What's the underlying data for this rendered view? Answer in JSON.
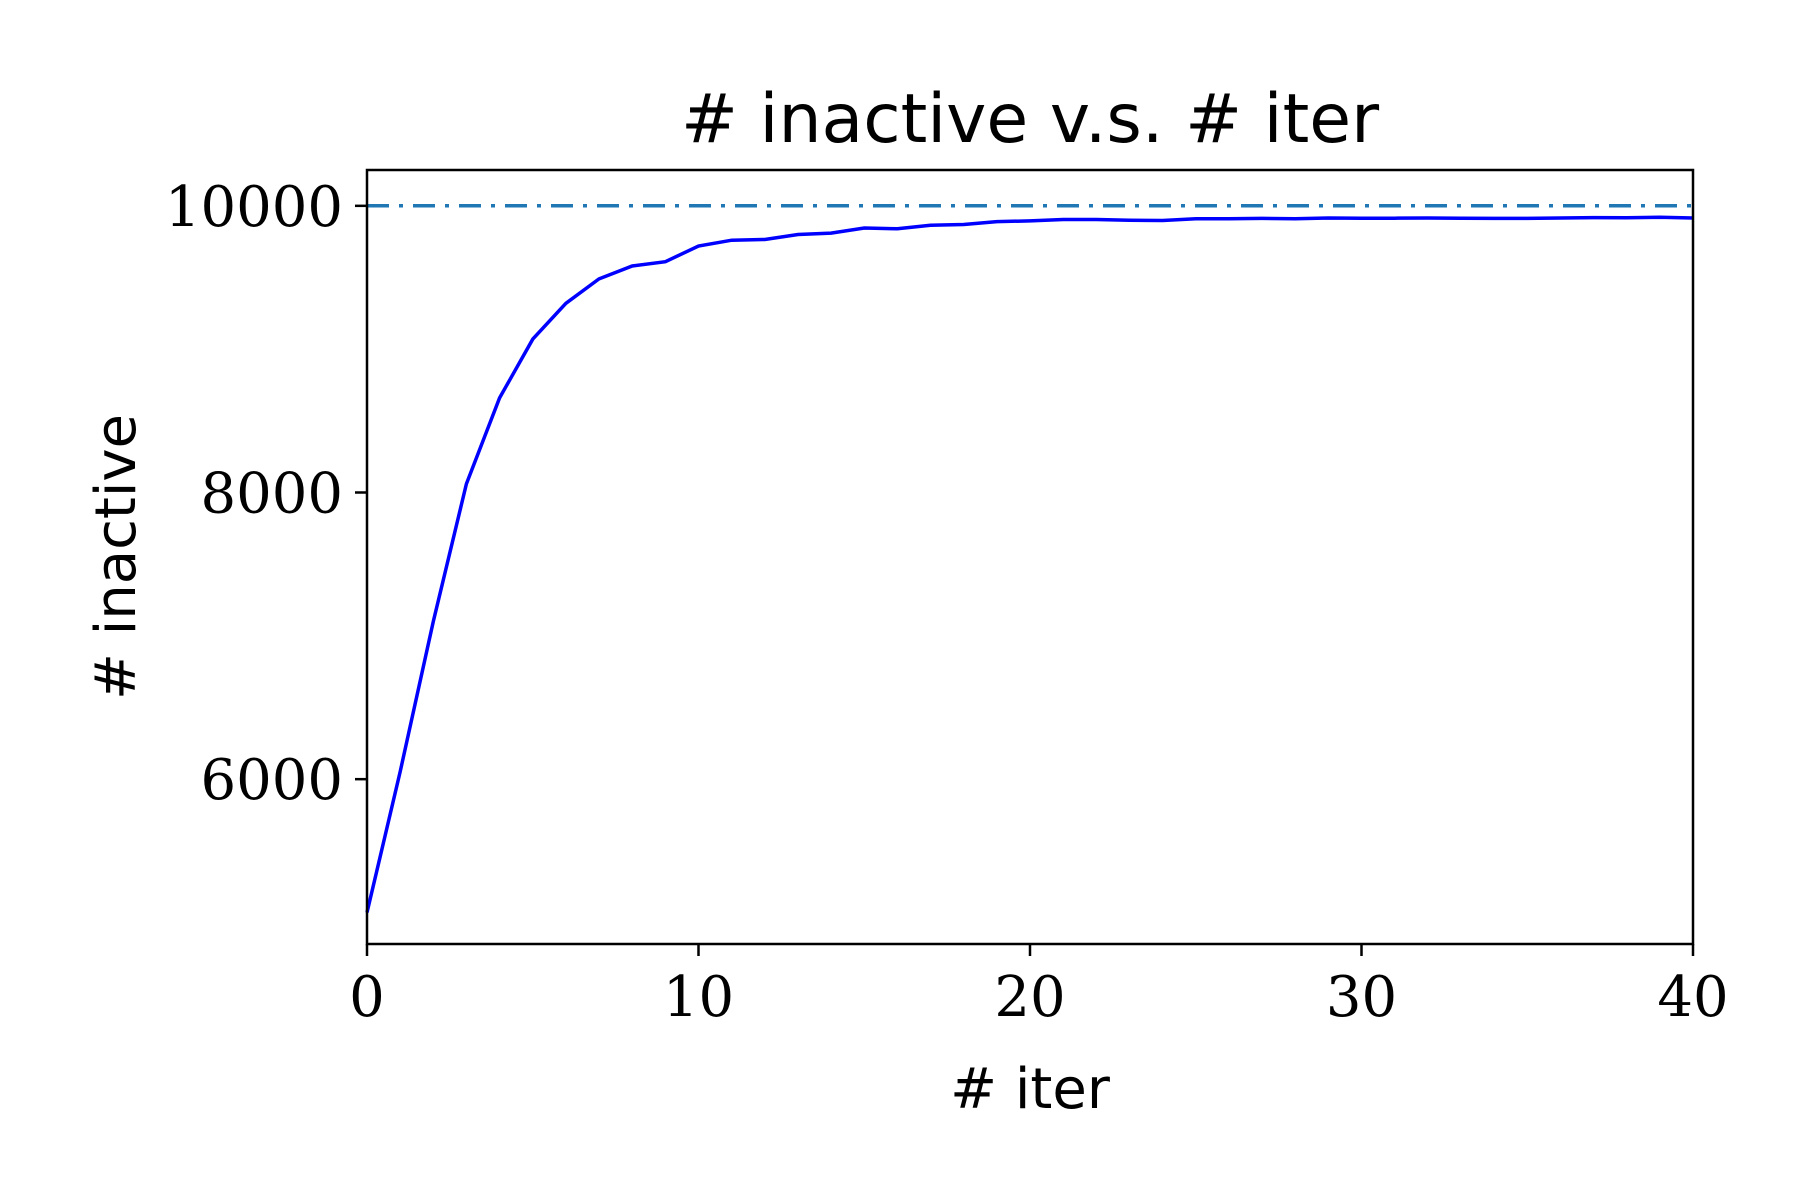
{
  "chart_data": {
    "type": "line",
    "title": "# inactive v.s. # iter",
    "xlabel": "# iter",
    "ylabel": "# inactive",
    "xlim": [
      0,
      40
    ],
    "ylim": [
      4850,
      10250
    ],
    "x_ticks": [
      0,
      10,
      20,
      30,
      40
    ],
    "x_tick_labels": [
      "0",
      "10",
      "20",
      "30",
      "40"
    ],
    "y_ticks": [
      6000,
      8000,
      10000
    ],
    "y_tick_labels": [
      "6000",
      "8000",
      "10000"
    ],
    "grid": false,
    "legend": "none",
    "series": [
      {
        "style": "solid",
        "color": "#0000ff",
        "x": [
          0,
          1,
          2,
          3,
          4,
          5,
          6,
          7,
          8,
          9,
          10,
          11,
          12,
          13,
          14,
          15,
          16,
          17,
          18,
          19,
          20,
          21,
          22,
          23,
          24,
          25,
          26,
          27,
          28,
          29,
          30,
          31,
          32,
          33,
          34,
          35,
          36,
          37,
          38,
          39,
          40
        ],
        "values": [
          5070,
          6050,
          7100,
          8060,
          8660,
          9070,
          9320,
          9490,
          9580,
          9610,
          9720,
          9760,
          9765,
          9800,
          9810,
          9845,
          9840,
          9865,
          9870,
          9890,
          9895,
          9905,
          9905,
          9900,
          9898,
          9910,
          9910,
          9912,
          9910,
          9915,
          9913,
          9914,
          9915,
          9913,
          9912,
          9912,
          9915,
          9918,
          9917,
          9920,
          9915
        ]
      },
      {
        "style": "dashdot",
        "color": "#1f77b4",
        "x": [
          0,
          40
        ],
        "values": [
          10000,
          10000
        ]
      }
    ]
  }
}
